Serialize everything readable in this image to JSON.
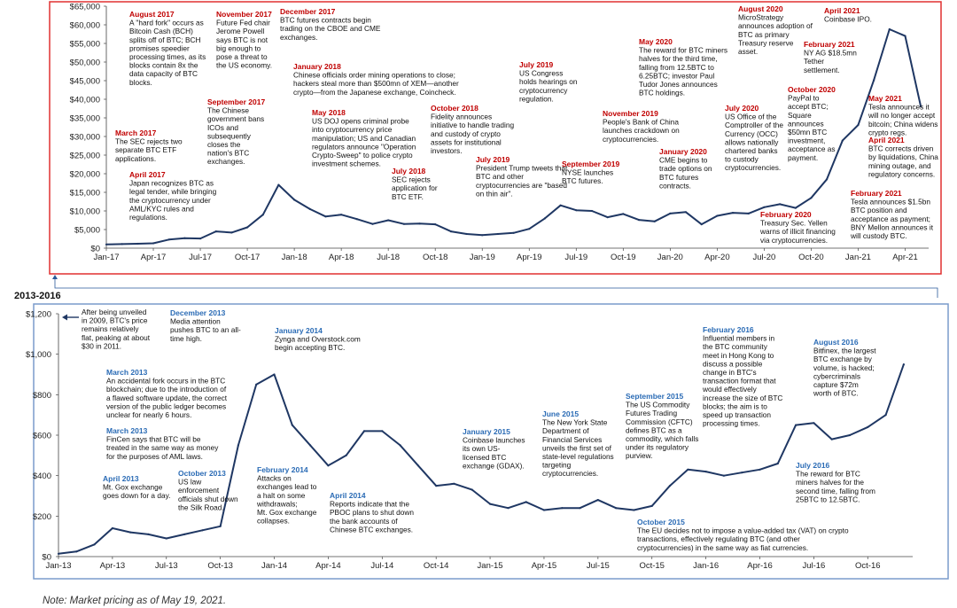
{
  "chart_data": [
    {
      "type": "line",
      "period_label": "",
      "x_ticks": [
        "Jan-17",
        "Apr-17",
        "Jul-17",
        "Oct-17",
        "Jan-18",
        "Apr-18",
        "Jul-18",
        "Oct-18",
        "Jan-19",
        "Apr-19",
        "Jul-19",
        "Oct-19",
        "Jan-20",
        "Apr-20",
        "Jul-20",
        "Oct-20",
        "Jan-21",
        "Apr-21"
      ],
      "y_ticks": [
        "$0",
        "$5,000",
        "$10,000",
        "$15,000",
        "$20,000",
        "$25,000",
        "$30,000",
        "$35,000",
        "$40,000",
        "$45,000",
        "$50,000",
        "$55,000",
        "$60,000",
        "$65,000"
      ],
      "ylim": [
        0,
        65000
      ],
      "series": [
        {
          "x": [
            "2017-01",
            "2017-02",
            "2017-03",
            "2017-04",
            "2017-05",
            "2017-06",
            "2017-07",
            "2017-08",
            "2017-09",
            "2017-10",
            "2017-11",
            "2017-12",
            "2018-01",
            "2018-02",
            "2018-03",
            "2018-04",
            "2018-05",
            "2018-06",
            "2018-07",
            "2018-08",
            "2018-09",
            "2018-10",
            "2018-11",
            "2018-12",
            "2019-01",
            "2019-02",
            "2019-03",
            "2019-04",
            "2019-05",
            "2019-06",
            "2019-07",
            "2019-08",
            "2019-09",
            "2019-10",
            "2019-11",
            "2019-12",
            "2020-01",
            "2020-02",
            "2020-03",
            "2020-04",
            "2020-05",
            "2020-06",
            "2020-07",
            "2020-08",
            "2020-09",
            "2020-10",
            "2020-11",
            "2020-12",
            "2021-01",
            "2021-02",
            "2021-03",
            "2021-04",
            "2021-05"
          ],
          "values": [
            1000,
            1100,
            1200,
            1300,
            2300,
            2700,
            2600,
            4500,
            4200,
            5600,
            9000,
            17000,
            13000,
            10500,
            8500,
            9000,
            7800,
            6500,
            7500,
            6500,
            6600,
            6400,
            4500,
            3800,
            3500,
            3800,
            4100,
            5200,
            8000,
            11500,
            10200,
            10000,
            8300,
            9200,
            7600,
            7200,
            9300,
            9700,
            6400,
            8700,
            9500,
            9300,
            11000,
            11800,
            10800,
            13500,
            18500,
            28900,
            33100,
            45100,
            58800,
            57000,
            38000
          ]
        }
      ],
      "annotations": [
        {
          "date": "August 2017",
          "text": [
            "A \"hard fork\" occurs as",
            "Bitcoin Cash (BCH)",
            "splits off of BTC; BCH",
            "promises speedier",
            "processing times, as its",
            "blocks contain 8x the",
            "data capacity of BTC",
            "blocks."
          ]
        },
        {
          "date": "March 2017",
          "text": [
            "The SEC rejects two",
            "separate BTC ETF",
            "applications."
          ]
        },
        {
          "date": "April 2017",
          "text": [
            "Japan recognizes BTC as",
            "legal tender, while bringing",
            "the cryptocurrency under",
            "AML/KYC rules and",
            "regulations."
          ]
        },
        {
          "date": "November 2017",
          "text": [
            "Future Fed chair",
            "Jerome Powell",
            "says BTC is not",
            "big enough to",
            "pose a threat to",
            "the US economy."
          ]
        },
        {
          "date": "September 2017",
          "text": [
            "The Chinese",
            "government bans",
            "ICOs and",
            "subsequently",
            "closes the",
            "nation's BTC",
            "exchanges."
          ]
        },
        {
          "date": "December 2017",
          "text": [
            "BTC futures contracts begin",
            "trading on the CBOE and CME",
            "exchanges."
          ]
        },
        {
          "date": "January 2018",
          "text": [
            "Chinese officials order mining operations to close;",
            "hackers steal more than $500mn of XEM—another",
            "crypto—from the Japanese exchange, Coincheck."
          ]
        },
        {
          "date": "May 2018",
          "text": [
            "US DOJ opens criminal probe",
            "into cryptocurrency price",
            "manipulation; US and Canadian",
            "regulators announce \"Operation",
            "Crypto-Sweep\" to police crypto",
            "investment schemes."
          ]
        },
        {
          "date": "July 2018",
          "text": [
            "SEC rejects",
            "application for",
            "BTC ETF."
          ]
        },
        {
          "date": "October 2018",
          "text": [
            "Fidelity announces",
            "initiative to handle trading",
            "and custody of crypto",
            "assets for institutional",
            "investors."
          ]
        },
        {
          "date": "July 2019",
          "text": [
            "US Congress",
            "holds hearings on",
            "cryptocurrency",
            "regulation."
          ]
        },
        {
          "date": "July 2019",
          "text": [
            "President Trump tweets that",
            "BTC and other",
            "cryptocurrencies are \"based",
            "on thin air\"."
          ]
        },
        {
          "date": "September 2019",
          "text": [
            "NYSE launches",
            "BTC futures."
          ]
        },
        {
          "date": "November 2019",
          "text": [
            "People's Bank of China",
            "launches crackdown on",
            "cryptocurrencies."
          ]
        },
        {
          "date": "May 2020",
          "text": [
            "The reward for BTC miners",
            "halves for the third time,",
            "falling from 12.5BTC to",
            "6.25BTC; investor Paul",
            "Tudor Jones announces",
            "BTC holdings."
          ]
        },
        {
          "date": "January 2020",
          "text": [
            "CME begins to",
            "trade options on",
            "BTC futures",
            "contracts."
          ]
        },
        {
          "date": "July 2020",
          "text": [
            "US Office of the",
            "Comptroller of the",
            "Currency (OCC)",
            "allows nationally",
            "chartered banks",
            "to custody",
            "cryptocurrencies."
          ]
        },
        {
          "date": "August 2020",
          "text": [
            "MicroStrategy",
            "announces adoption of",
            "BTC as primary",
            "Treasury reserve",
            "asset."
          ]
        },
        {
          "date": "October 2020",
          "text": [
            "PayPal to",
            "accept BTC;",
            "Square",
            "announces",
            "$50mn BTC",
            "investment,",
            "acceptance as",
            "payment."
          ]
        },
        {
          "date": "February 2020",
          "text": [
            "Treasury Sec. Yellen",
            "warns of illicit financing",
            "via cryptocurrencies."
          ]
        },
        {
          "date": "April 2021",
          "text": [
            "Coinbase IPO."
          ]
        },
        {
          "date": "February 2021",
          "text": [
            "NY AG $18.5mn",
            "Tether",
            "settlement."
          ]
        },
        {
          "date": "May 2021",
          "text": [
            "Tesla announces it",
            "will no longer accept",
            "bitcoin; China widens",
            "crypto regs."
          ]
        },
        {
          "date": "April 2021",
          "text": [
            "BTC corrects driven",
            "by liquidations, China",
            "mining outage, and",
            "regulatory concerns."
          ]
        },
        {
          "date": "February 2021",
          "text": [
            "Tesla announces $1.5bn",
            "BTC position and",
            "acceptance as payment;",
            "BNY Mellon announces it",
            "will custody BTC."
          ]
        }
      ]
    },
    {
      "type": "line",
      "period_label": "2013-2016",
      "x_ticks": [
        "Jan-13",
        "Apr-13",
        "Jul-13",
        "Oct-13",
        "Jan-14",
        "Apr-14",
        "Jul-14",
        "Oct-14",
        "Jan-15",
        "Apr-15",
        "Jul-15",
        "Oct-15",
        "Jan-16",
        "Apr-16",
        "Jul-16",
        "Oct-16"
      ],
      "y_ticks": [
        "$0",
        "$200",
        "$400",
        "$600",
        "$800",
        "$1,000",
        "$1,200"
      ],
      "ylim": [
        0,
        1200
      ],
      "series": [
        {
          "x": [
            "2013-01",
            "2013-02",
            "2013-03",
            "2013-04",
            "2013-05",
            "2013-06",
            "2013-07",
            "2013-08",
            "2013-09",
            "2013-10",
            "2013-11",
            "2013-12",
            "2014-01",
            "2014-02",
            "2014-03",
            "2014-04",
            "2014-05",
            "2014-06",
            "2014-07",
            "2014-08",
            "2014-09",
            "2014-10",
            "2014-11",
            "2014-12",
            "2015-01",
            "2015-02",
            "2015-03",
            "2015-04",
            "2015-05",
            "2015-06",
            "2015-07",
            "2015-08",
            "2015-09",
            "2015-10",
            "2015-11",
            "2015-12",
            "2016-01",
            "2016-02",
            "2016-03",
            "2016-04",
            "2016-05",
            "2016-06",
            "2016-07",
            "2016-08",
            "2016-09",
            "2016-10",
            "2016-11",
            "2016-12"
          ],
          "values": [
            14,
            25,
            60,
            140,
            120,
            110,
            90,
            110,
            130,
            150,
            550,
            850,
            900,
            650,
            550,
            450,
            500,
            620,
            620,
            550,
            450,
            350,
            360,
            330,
            260,
            240,
            270,
            230,
            240,
            240,
            280,
            240,
            230,
            250,
            350,
            430,
            420,
            400,
            415,
            430,
            460,
            650,
            660,
            580,
            600,
            640,
            700,
            950
          ]
        }
      ],
      "annotations": [
        {
          "date": "",
          "text": [
            "After being unveiled",
            "in 2009, BTC's price",
            "remains relatively",
            "flat, peaking at about",
            "$30 in 2011."
          ]
        },
        {
          "date": "December 2013",
          "text": [
            "Media attention",
            "pushes BTC to an all-",
            "time high."
          ]
        },
        {
          "date": "January 2014",
          "text": [
            "Zynga and Overstock.com",
            "begin accepting BTC."
          ]
        },
        {
          "date": "March 2013",
          "text": [
            "An accidental fork occurs in the BTC",
            "blockchain; due to the introduction of",
            "a flawed software update, the correct",
            "version of the public ledger becomes",
            "unclear for nearly 6 hours."
          ]
        },
        {
          "date": "March 2013",
          "text": [
            "FinCen says that BTC will be",
            "treated in the same way as money",
            "for the purposes of AML laws."
          ]
        },
        {
          "date": "April 2013",
          "text": [
            "Mt. Gox exchange",
            "goes down for a day."
          ]
        },
        {
          "date": "October 2013",
          "text": [
            "US law",
            "enforcement",
            "officials shut down",
            "the Silk Road."
          ]
        },
        {
          "date": "February 2014",
          "text": [
            "Attacks on",
            "exchanges lead to",
            "a halt on some",
            "withdrawals;",
            "Mt. Gox exchange",
            "collapses."
          ]
        },
        {
          "date": "April 2014",
          "text": [
            "Reports indicate that the",
            "PBOC plans to shut down",
            "the bank accounts of",
            "Chinese BTC exchanges."
          ]
        },
        {
          "date": "January 2015",
          "text": [
            "Coinbase launches",
            "its own US-",
            "licensed BTC",
            "exchange (GDAX)."
          ]
        },
        {
          "date": "June 2015",
          "text": [
            "The New York State",
            "Department of",
            "Financial Services",
            "unveils the first set of",
            "state-level regulations",
            "targeting",
            "cryptocurrencies."
          ]
        },
        {
          "date": "September 2015",
          "text": [
            "The US Commodity",
            "Futures Trading",
            "Commission (CFTC)",
            "defines BTC as a",
            "commodity, which falls",
            "under its regulatory",
            "purview."
          ]
        },
        {
          "date": "October 2015",
          "text": [
            "The EU decides not to impose a value-added tax (VAT) on crypto",
            "transactions, effectively regulating BTC (and other",
            "cryptocurrencies) in the same way as fiat currencies."
          ]
        },
        {
          "date": "February 2016",
          "text": [
            "Influential members in",
            "the BTC community",
            "meet in Hong Kong to",
            "discuss a possible",
            "change in BTC's",
            "transaction format that",
            "would effectively",
            "increase the size of BTC",
            "blocks; the aim is to",
            "speed up transaction",
            "processing times."
          ]
        },
        {
          "date": "August 2016",
          "text": [
            "Bitfinex, the largest",
            "BTC exchange by",
            "volume, is hacked;",
            "cybercriminals",
            "capture $72m",
            "worth of BTC."
          ]
        },
        {
          "date": "July 2016",
          "text": [
            "The reward for BTC",
            "miners halves for the",
            "second time, falling from",
            "25BTC to 12.5BTC."
          ]
        }
      ]
    }
  ],
  "note": "Note: Market pricing as of May 19, 2021.",
  "colors": {
    "top_border": "#e03030",
    "bottom_border": "#7a9ccc",
    "line": "#1f3763",
    "ann_title_top": "#c00000",
    "ann_title_bottom": "#2a6bb5"
  }
}
